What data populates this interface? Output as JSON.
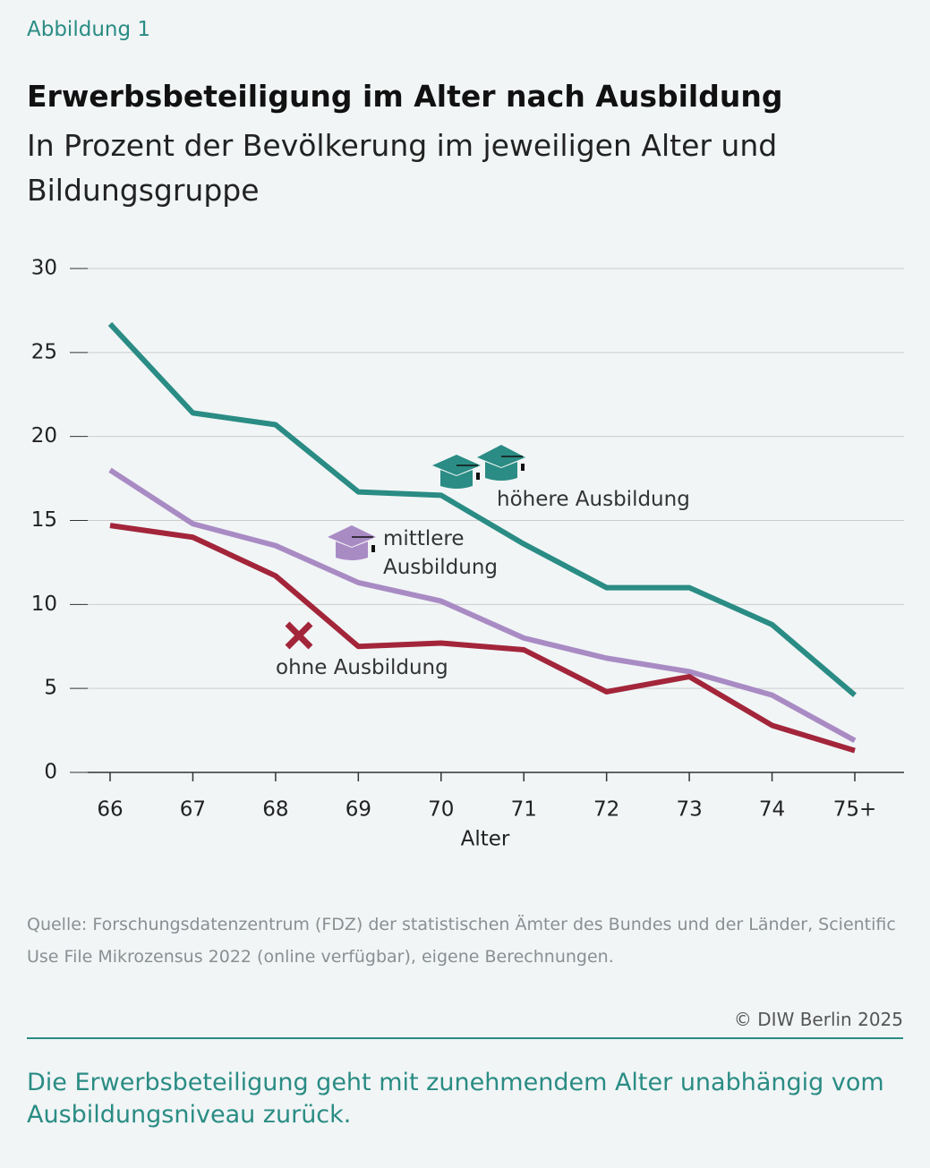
{
  "figure_label": "Abbildung 1",
  "chart_data": {
    "type": "line",
    "title": "Erwerbsbeteiligung im Alter nach Ausbildung",
    "subtitle": "In Prozent der Bevölkerung im jeweiligen Alter und Bildungsgruppe",
    "x_label": "Alter",
    "categories": [
      "66",
      "67",
      "68",
      "69",
      "70",
      "71",
      "72",
      "73",
      "74",
      "75+"
    ],
    "series": [
      {
        "name": "höhere Ausbildung",
        "color": "#2a8c84",
        "values": [
          26.7,
          21.4,
          20.7,
          16.7,
          16.5,
          13.6,
          11.0,
          11.0,
          8.8,
          4.6
        ]
      },
      {
        "name": "mittlere Ausbildung",
        "color": "#a98bc4",
        "values": [
          18.0,
          14.8,
          13.5,
          11.3,
          10.2,
          8.0,
          6.8,
          6.0,
          4.6,
          1.9
        ]
      },
      {
        "name": "ohne Ausbildung",
        "color": "#a3253a",
        "values": [
          14.7,
          14.0,
          11.7,
          7.5,
          7.7,
          7.3,
          4.8,
          5.7,
          2.8,
          1.3
        ]
      }
    ],
    "ylim": [
      0,
      30
    ],
    "yticks": [
      0,
      5,
      10,
      15,
      20,
      25,
      30
    ],
    "grid": true
  },
  "source": "Quelle: Forschungsdatenzentrum (FDZ) der statistischen Ämter des Bundes und der Länder, Scientific Use File Mikrozensus 2022 (online verfügbar), eigene Berechnungen.",
  "copyright": "© DIW Berlin 2025",
  "caption": "Die Erwerbsbeteiligung geht mit zunehmendem Alter unabhängig vom Ausbildungsniveau zurück."
}
